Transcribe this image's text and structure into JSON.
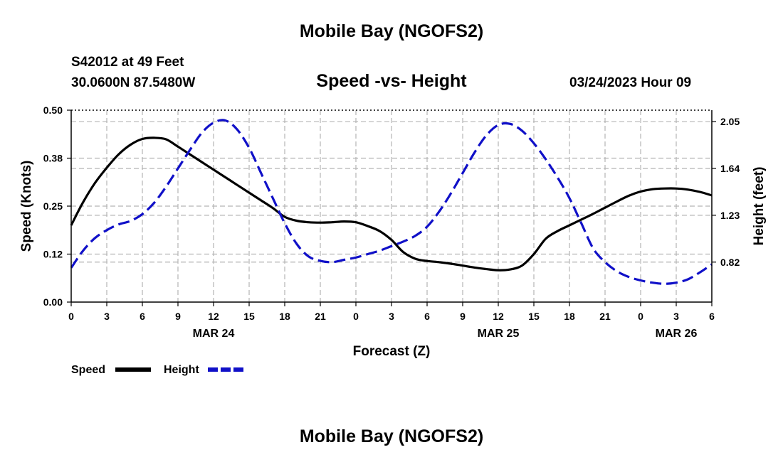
{
  "title_top": "Mobile Bay (NGOFS2)",
  "title_bottom": "Mobile Bay (NGOFS2)",
  "station": "S42012 at 49 Feet",
  "coords": "30.0600N  87.5480W",
  "datetime": "03/24/2023 Hour 09",
  "colors": {
    "speed": "#000000",
    "height": "#1010c8",
    "grid": "#b4b4b4"
  },
  "chart_data": {
    "type": "line",
    "title": "Speed -vs- Height",
    "xlabel": "Forecast (Z)",
    "ylabel": "Speed (Knots)",
    "y2label": "Height (feet)",
    "x_tick_labels": [
      "0",
      "3",
      "6",
      "9",
      "12",
      "15",
      "18",
      "21",
      "0",
      "3",
      "6",
      "9",
      "12",
      "15",
      "18",
      "21",
      "0",
      "3",
      "6"
    ],
    "date_labels": [
      {
        "label": "MAR 24",
        "at_hour": 12
      },
      {
        "label": "MAR 25",
        "at_hour": 36
      },
      {
        "label": "MAR 26",
        "at_hour": 51
      }
    ],
    "xlim": [
      0,
      54
    ],
    "ylim": [
      0,
      0.5
    ],
    "yticks": [
      "0.00",
      "0.12",
      "0.25",
      "0.38",
      "0.50"
    ],
    "y2lim": [
      0.47,
      2.15
    ],
    "y2ticks": [
      "0.82",
      "1.23",
      "1.64",
      "2.05"
    ],
    "grid": true,
    "legend_position": "bottom-left",
    "series": [
      {
        "name": "Speed",
        "axis": "left",
        "style": "solid",
        "x": [
          0,
          1,
          2,
          3,
          4,
          5,
          6,
          7,
          8,
          9,
          10,
          11,
          12,
          13,
          14,
          15,
          16,
          17,
          18,
          19,
          20,
          21,
          22,
          23,
          24,
          25,
          26,
          27,
          28,
          29,
          30,
          31,
          32,
          33,
          34,
          35,
          36,
          37,
          38,
          39,
          40,
          41,
          42,
          43,
          44,
          45,
          46,
          47,
          48,
          49,
          50,
          51,
          52,
          53,
          54
        ],
        "values": [
          0.2,
          0.26,
          0.31,
          0.35,
          0.385,
          0.41,
          0.425,
          0.428,
          0.424,
          0.405,
          0.385,
          0.365,
          0.345,
          0.325,
          0.305,
          0.285,
          0.265,
          0.245,
          0.222,
          0.212,
          0.208,
          0.207,
          0.208,
          0.21,
          0.208,
          0.198,
          0.185,
          0.162,
          0.13,
          0.113,
          0.107,
          0.104,
          0.1,
          0.095,
          0.09,
          0.086,
          0.083,
          0.085,
          0.095,
          0.125,
          0.165,
          0.185,
          0.2,
          0.215,
          0.23,
          0.246,
          0.262,
          0.277,
          0.288,
          0.294,
          0.296,
          0.296,
          0.293,
          0.287,
          0.278
        ]
      },
      {
        "name": "Height",
        "axis": "right",
        "style": "dashed",
        "x": [
          0,
          1,
          2,
          3,
          4,
          5,
          6,
          7,
          8,
          9,
          10,
          11,
          12,
          13,
          14,
          15,
          16,
          17,
          18,
          19,
          20,
          21,
          22,
          23,
          24,
          25,
          26,
          27,
          28,
          29,
          30,
          31,
          32,
          33,
          34,
          35,
          36,
          37,
          38,
          39,
          40,
          41,
          42,
          43,
          44,
          45,
          46,
          47,
          48,
          49,
          50,
          51,
          52,
          53,
          54
        ],
        "values": [
          0.77,
          0.92,
          1.03,
          1.1,
          1.15,
          1.18,
          1.24,
          1.34,
          1.48,
          1.64,
          1.8,
          1.95,
          2.04,
          2.06,
          1.98,
          1.82,
          1.6,
          1.38,
          1.16,
          0.98,
          0.87,
          0.83,
          0.82,
          0.84,
          0.86,
          0.89,
          0.92,
          0.96,
          1.0,
          1.05,
          1.13,
          1.26,
          1.42,
          1.6,
          1.78,
          1.93,
          2.02,
          2.03,
          1.97,
          1.86,
          1.72,
          1.56,
          1.38,
          1.16,
          0.94,
          0.82,
          0.74,
          0.69,
          0.66,
          0.64,
          0.63,
          0.64,
          0.67,
          0.73,
          0.8
        ]
      }
    ]
  }
}
